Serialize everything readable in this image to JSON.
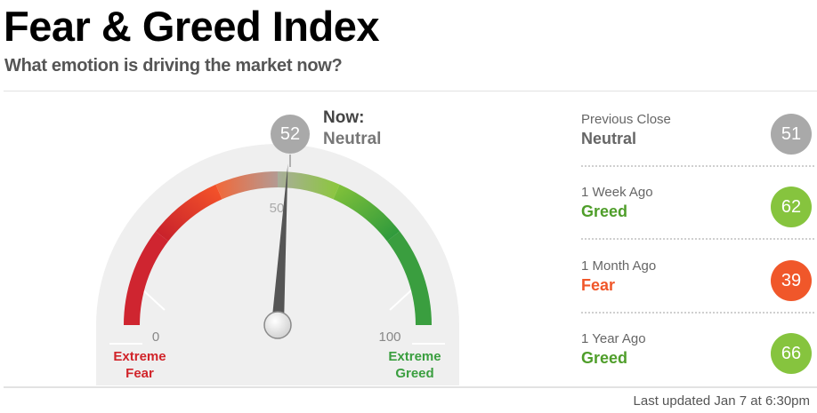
{
  "header": {
    "title": "Fear & Greed Index",
    "subtitle": "What emotion is driving the market now?"
  },
  "gauge": {
    "value": 52,
    "min_label": "0",
    "max_label": "100",
    "mid_label": "50",
    "left_caption": [
      "Extreme",
      "Fear"
    ],
    "right_caption": [
      "Extreme",
      "Greed"
    ],
    "now_label": "Now:",
    "now_value": "Neutral",
    "colors": {
      "extreme_fear": "#d1242a",
      "fear": "#f0572a",
      "neutral": "#a8a8a8",
      "greed": "#8cc63f",
      "extreme_greed": "#3da041"
    }
  },
  "history": [
    {
      "label": "Previous Close",
      "value_label": "Neutral",
      "value": "51",
      "color": "#a9a9a9",
      "text_color": "#666666"
    },
    {
      "label": "1 Week Ago",
      "value_label": "Greed",
      "value": "62",
      "color": "#86c43e",
      "text_color": "#4f9e2a"
    },
    {
      "label": "1 Month Ago",
      "value_label": "Fear",
      "value": "39",
      "color": "#f0572a",
      "text_color": "#f0572a"
    },
    {
      "label": "1 Year Ago",
      "value_label": "Greed",
      "value": "66",
      "color": "#86c43e",
      "text_color": "#4f9e2a"
    }
  ],
  "footer": {
    "updated": "Last updated Jan 7 at 6:30pm"
  }
}
